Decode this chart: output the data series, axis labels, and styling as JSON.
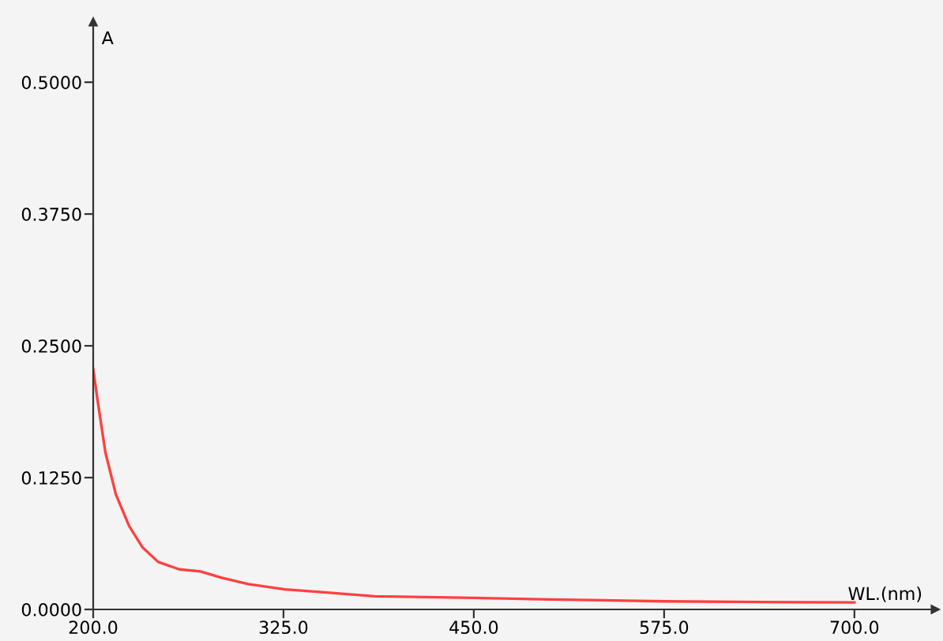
{
  "chart_data": {
    "type": "line",
    "xlabel": "WL.(nm)",
    "ylabel": "A",
    "xlim": [
      200,
      753
    ],
    "ylim": [
      0,
      0.557
    ],
    "xticks": [
      {
        "value": 200,
        "label": "200.0"
      },
      {
        "value": 325,
        "label": "325.0"
      },
      {
        "value": 450,
        "label": "450.0"
      },
      {
        "value": 575,
        "label": "575.0"
      },
      {
        "value": 700,
        "label": "700.0"
      }
    ],
    "yticks": [
      {
        "value": 0,
        "label": "0.0000"
      },
      {
        "value": 0.125,
        "label": "0.1250"
      },
      {
        "value": 0.25,
        "label": "0.2500"
      },
      {
        "value": 0.375,
        "label": "0.3750"
      },
      {
        "value": 0.5,
        "label": "0.5000"
      }
    ],
    "grid": false,
    "legend": false,
    "series": [
      {
        "color": "#ff4040",
        "x": [
          200,
          202.8,
          208,
          214.9,
          223.6,
          232.3,
          242.7,
          256.6,
          270.5,
          284.4,
          301.8,
          326,
          353.8,
          385,
          450,
          500,
          575,
          640,
          700
        ],
        "values": [
          0.228,
          0.199,
          0.149,
          0.109,
          0.079,
          0.059,
          0.045,
          0.038,
          0.036,
          0.03,
          0.024,
          0.019,
          0.016,
          0.0125,
          0.011,
          0.0095,
          0.0077,
          0.007,
          0.0066
        ]
      }
    ]
  }
}
